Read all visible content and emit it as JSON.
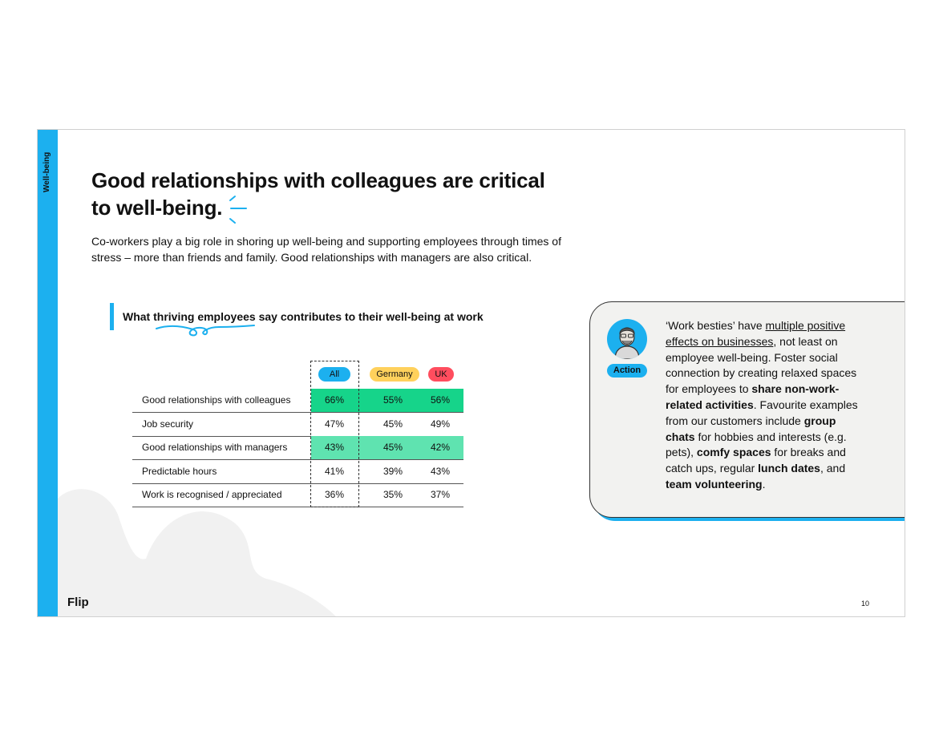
{
  "colors": {
    "accent": "#1cb0ef",
    "all_pill": "#1cb0ef",
    "germany_pill": "#ffd15c",
    "uk_pill": "#ff4d5e",
    "highlight_strong": "#16d48a",
    "highlight_soft": "#5fe3b0"
  },
  "sidebar": {
    "section_label": "Well-being"
  },
  "title": {
    "line1": "Good relationships with colleagues are critical",
    "line2": "to well-being."
  },
  "intro": "Co-workers play a big role in shoring up well-being and supporting employees through times of stress – more than friends and family. Good relationships with managers are also critical.",
  "table_title": "What thriving employees say contributes to their well-being at work",
  "table": {
    "columns": [
      "All",
      "Germany",
      "UK"
    ],
    "rows": [
      {
        "label": "Good relationships with colleagues",
        "values": [
          "66%",
          "55%",
          "56%"
        ]
      },
      {
        "label": "Job security",
        "values": [
          "47%",
          "45%",
          "49%"
        ]
      },
      {
        "label": "Good relationships with managers",
        "values": [
          "43%",
          "45%",
          "42%"
        ]
      },
      {
        "label": "Predictable hours",
        "values": [
          "41%",
          "39%",
          "43%"
        ]
      },
      {
        "label": "Work is recognised / appreciated",
        "values": [
          "36%",
          "35%",
          "37%"
        ]
      }
    ]
  },
  "action": {
    "badge": "Action",
    "p1": "‘Work besties’ have ",
    "p1_link": "multiple positive effects on businesses",
    "p2": ", not least on employee well-being. Foster social connection by creating relaxed spaces for employees to ",
    "b1": "share non-work-related activities",
    "p3": ". Favourite examples from our customers include ",
    "b2": "group chats",
    "p4": " for hobbies and interests (e.g. pets), ",
    "b3": "comfy spaces",
    "p5": " for breaks and catch ups, regular ",
    "b4": "lunch dates",
    "p6": ", and ",
    "b5": "team volunteering",
    "p7": "."
  },
  "footer": {
    "logo": "Flip",
    "page_number": "10"
  }
}
